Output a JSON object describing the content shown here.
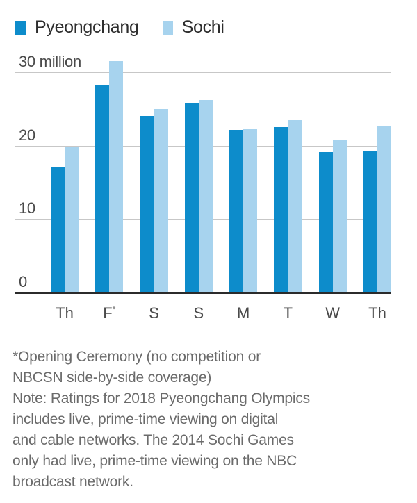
{
  "legend": {
    "items": [
      {
        "label": "Pyeongchang",
        "color": "#0d8ccb"
      },
      {
        "label": "Sochi",
        "color": "#a7d3ee"
      }
    ]
  },
  "chart_data": {
    "type": "bar",
    "title": "",
    "xlabel": "",
    "ylabel": "",
    "unit": "million viewers",
    "categories": [
      "Th",
      "F*",
      "S",
      "S",
      "M",
      "T",
      "W",
      "Th"
    ],
    "series": [
      {
        "name": "Pyeongchang",
        "color": "#0d8ccb",
        "values": [
          17.2,
          28.3,
          24.1,
          25.9,
          22.2,
          22.6,
          19.2,
          19.3
        ]
      },
      {
        "name": "Sochi",
        "color": "#a7d3ee",
        "values": [
          20.0,
          31.6,
          25.1,
          26.3,
          22.4,
          23.6,
          20.8,
          22.7
        ]
      }
    ],
    "ylim": [
      0,
      32
    ],
    "yticks": [
      {
        "value": 0,
        "label": "0"
      },
      {
        "value": 10,
        "label": "10"
      },
      {
        "value": 20,
        "label": "20"
      },
      {
        "value": 30,
        "label": "30 million"
      }
    ],
    "grid": true,
    "legend_position": "top"
  },
  "footnote": {
    "lines": [
      "*Opening Ceremony (no competition or",
      "NBCSN side-by-side coverage)",
      "Note: Ratings for 2018 Pyeongchang Olympics",
      "includes live, prime-time viewing on digital",
      "and cable networks. The 2014 Sochi Games",
      "only had live, prime-time viewing on the NBC",
      "broadcast network."
    ]
  }
}
